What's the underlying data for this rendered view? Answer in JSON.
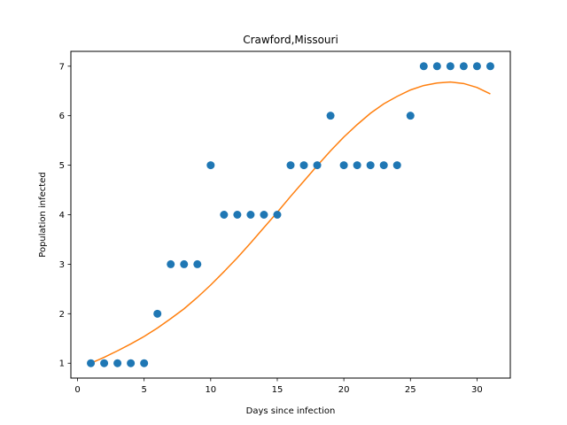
{
  "chart_data": {
    "type": "scatter",
    "title": "Crawford,Missouri",
    "xlabel": "Days since infection",
    "ylabel": "Population infected",
    "xlim": [
      -0.5,
      32.5
    ],
    "ylim": [
      0.7,
      7.3
    ],
    "xticks": [
      0,
      5,
      10,
      15,
      20,
      25,
      30
    ],
    "yticks": [
      1,
      2,
      3,
      4,
      5,
      6,
      7
    ],
    "grid": false,
    "series": [
      {
        "kind": "scatter",
        "color": "#1f77b4",
        "x": [
          1,
          2,
          3,
          4,
          5,
          6,
          7,
          8,
          9,
          10,
          11,
          12,
          13,
          14,
          15,
          16,
          17,
          18,
          19,
          20,
          21,
          22,
          23,
          24,
          25,
          26,
          27,
          28,
          29,
          30,
          31
        ],
        "y": [
          1,
          1,
          1,
          1,
          1,
          2,
          3,
          3,
          3,
          5,
          4,
          4,
          4,
          4,
          4,
          5,
          5,
          5,
          6,
          5,
          5,
          5,
          5,
          5,
          6,
          7,
          7,
          7,
          7,
          7,
          7
        ]
      },
      {
        "kind": "line",
        "color": "#ff7f0e",
        "x": [
          1,
          2,
          3,
          4,
          5,
          6,
          7,
          8,
          9,
          10,
          11,
          12,
          13,
          14,
          15,
          16,
          17,
          18,
          19,
          20,
          21,
          22,
          23,
          24,
          25,
          26,
          27,
          28,
          29,
          30,
          31
        ],
        "y": [
          1.0,
          1.12,
          1.25,
          1.39,
          1.54,
          1.71,
          1.9,
          2.1,
          2.33,
          2.58,
          2.85,
          3.13,
          3.43,
          3.74,
          4.05,
          4.37,
          4.68,
          4.99,
          5.29,
          5.57,
          5.82,
          6.05,
          6.24,
          6.39,
          6.52,
          6.61,
          6.66,
          6.68,
          6.65,
          6.57,
          6.44
        ]
      }
    ]
  }
}
